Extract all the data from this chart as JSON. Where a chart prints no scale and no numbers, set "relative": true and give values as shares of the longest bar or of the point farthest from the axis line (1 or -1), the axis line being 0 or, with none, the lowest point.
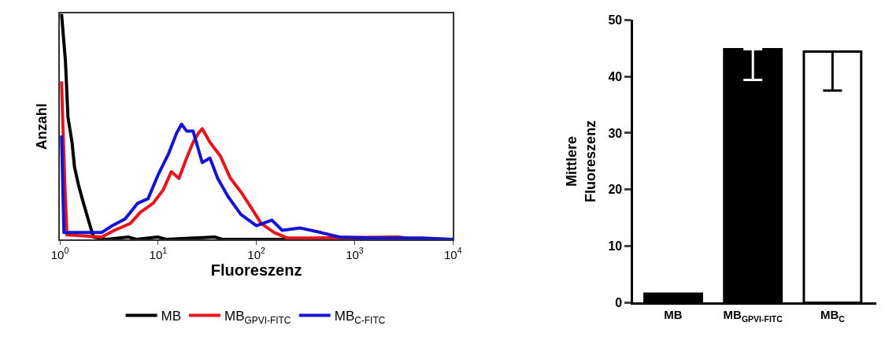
{
  "chart_data": [
    {
      "type": "line",
      "xlabel": "Fluoreszenz",
      "ylabel": "Anzahl",
      "relative": true,
      "log": "x",
      "xlim": [
        1,
        10000
      ],
      "xticks": [
        {
          "value": 1,
          "label": "10$^{0}$"
        },
        {
          "value": 10,
          "label": "10$^{1}$"
        },
        {
          "value": 100,
          "label": "10$^{2}$"
        },
        {
          "value": 1000,
          "label": "10$^{3}$"
        },
        {
          "value": 10000,
          "label": "10$^{4}$"
        }
      ],
      "legend": "bottom",
      "series": [
        {
          "name": "MB",
          "color": "#000000",
          "x": [
            1.04,
            1.14,
            1.21,
            1.33,
            1.41,
            1.55,
            1.69,
            1.85,
            2.03,
            2.2,
            3,
            5,
            6,
            10,
            12,
            38,
            45,
            10000
          ],
          "values": [
            1.0,
            0.79,
            0.54,
            0.43,
            0.32,
            0.24,
            0.18,
            0.12,
            0.06,
            0.01,
            0,
            0.01,
            0,
            0.01,
            0,
            0.01,
            0,
            0
          ]
        },
        {
          "name": "MB$_{GPVI-FITC}$",
          "color": "#e8141b",
          "x": [
            1.04,
            1.12,
            1.18,
            2.66,
            3.6,
            5.2,
            6.6,
            8.9,
            11.3,
            13.6,
            16.3,
            19.5,
            22.7,
            25.7,
            28.1,
            33.7,
            42.9,
            54.5,
            69.6,
            88.7,
            112,
            152,
            205,
            380,
            2790,
            4260
          ],
          "values": [
            0.7,
            0.26,
            0.02,
            0.01,
            0.04,
            0.07,
            0.12,
            0.16,
            0.22,
            0.3,
            0.27,
            0.36,
            0.43,
            0.47,
            0.49,
            0.43,
            0.37,
            0.27,
            0.21,
            0.14,
            0.07,
            0.03,
            0.006,
            0.006,
            0.01,
            0
          ]
        },
        {
          "name": "MB$_{C-FITC}$",
          "color": "#1414d2",
          "x": [
            1.04,
            1.1,
            2.66,
            3.4,
            4.6,
            6.2,
            7.9,
            10.1,
            12.8,
            15.4,
            17.3,
            19.5,
            22.7,
            28.1,
            33.7,
            40.4,
            51.4,
            69.6,
            100,
            144,
            183,
            280,
            453,
            697,
            1520,
            4800,
            10000
          ],
          "values": [
            0.46,
            0.03,
            0.03,
            0.06,
            0.09,
            0.16,
            0.18,
            0.29,
            0.38,
            0.47,
            0.51,
            0.48,
            0.48,
            0.34,
            0.36,
            0.27,
            0.19,
            0.11,
            0.06,
            0.085,
            0.04,
            0.05,
            0.03,
            0.01,
            0.006,
            0.006,
            0
          ]
        }
      ]
    },
    {
      "type": "bar",
      "ylabel": "Mittlere\nFluoreszenz",
      "categories": [
        "MB",
        "MB$_{GPVI-FITC}$",
        "MB$_{C}$"
      ],
      "values": [
        1.6,
        44.8,
        44.4
      ],
      "colors": [
        "#000000",
        "#000000",
        "#ffffff"
      ],
      "errors": [
        null,
        [
          39.4,
          44.8
        ],
        [
          37.5,
          44.4
        ]
      ],
      "ylim": [
        0,
        50
      ],
      "yticks": [
        0,
        10,
        20,
        30,
        40,
        50
      ]
    }
  ]
}
